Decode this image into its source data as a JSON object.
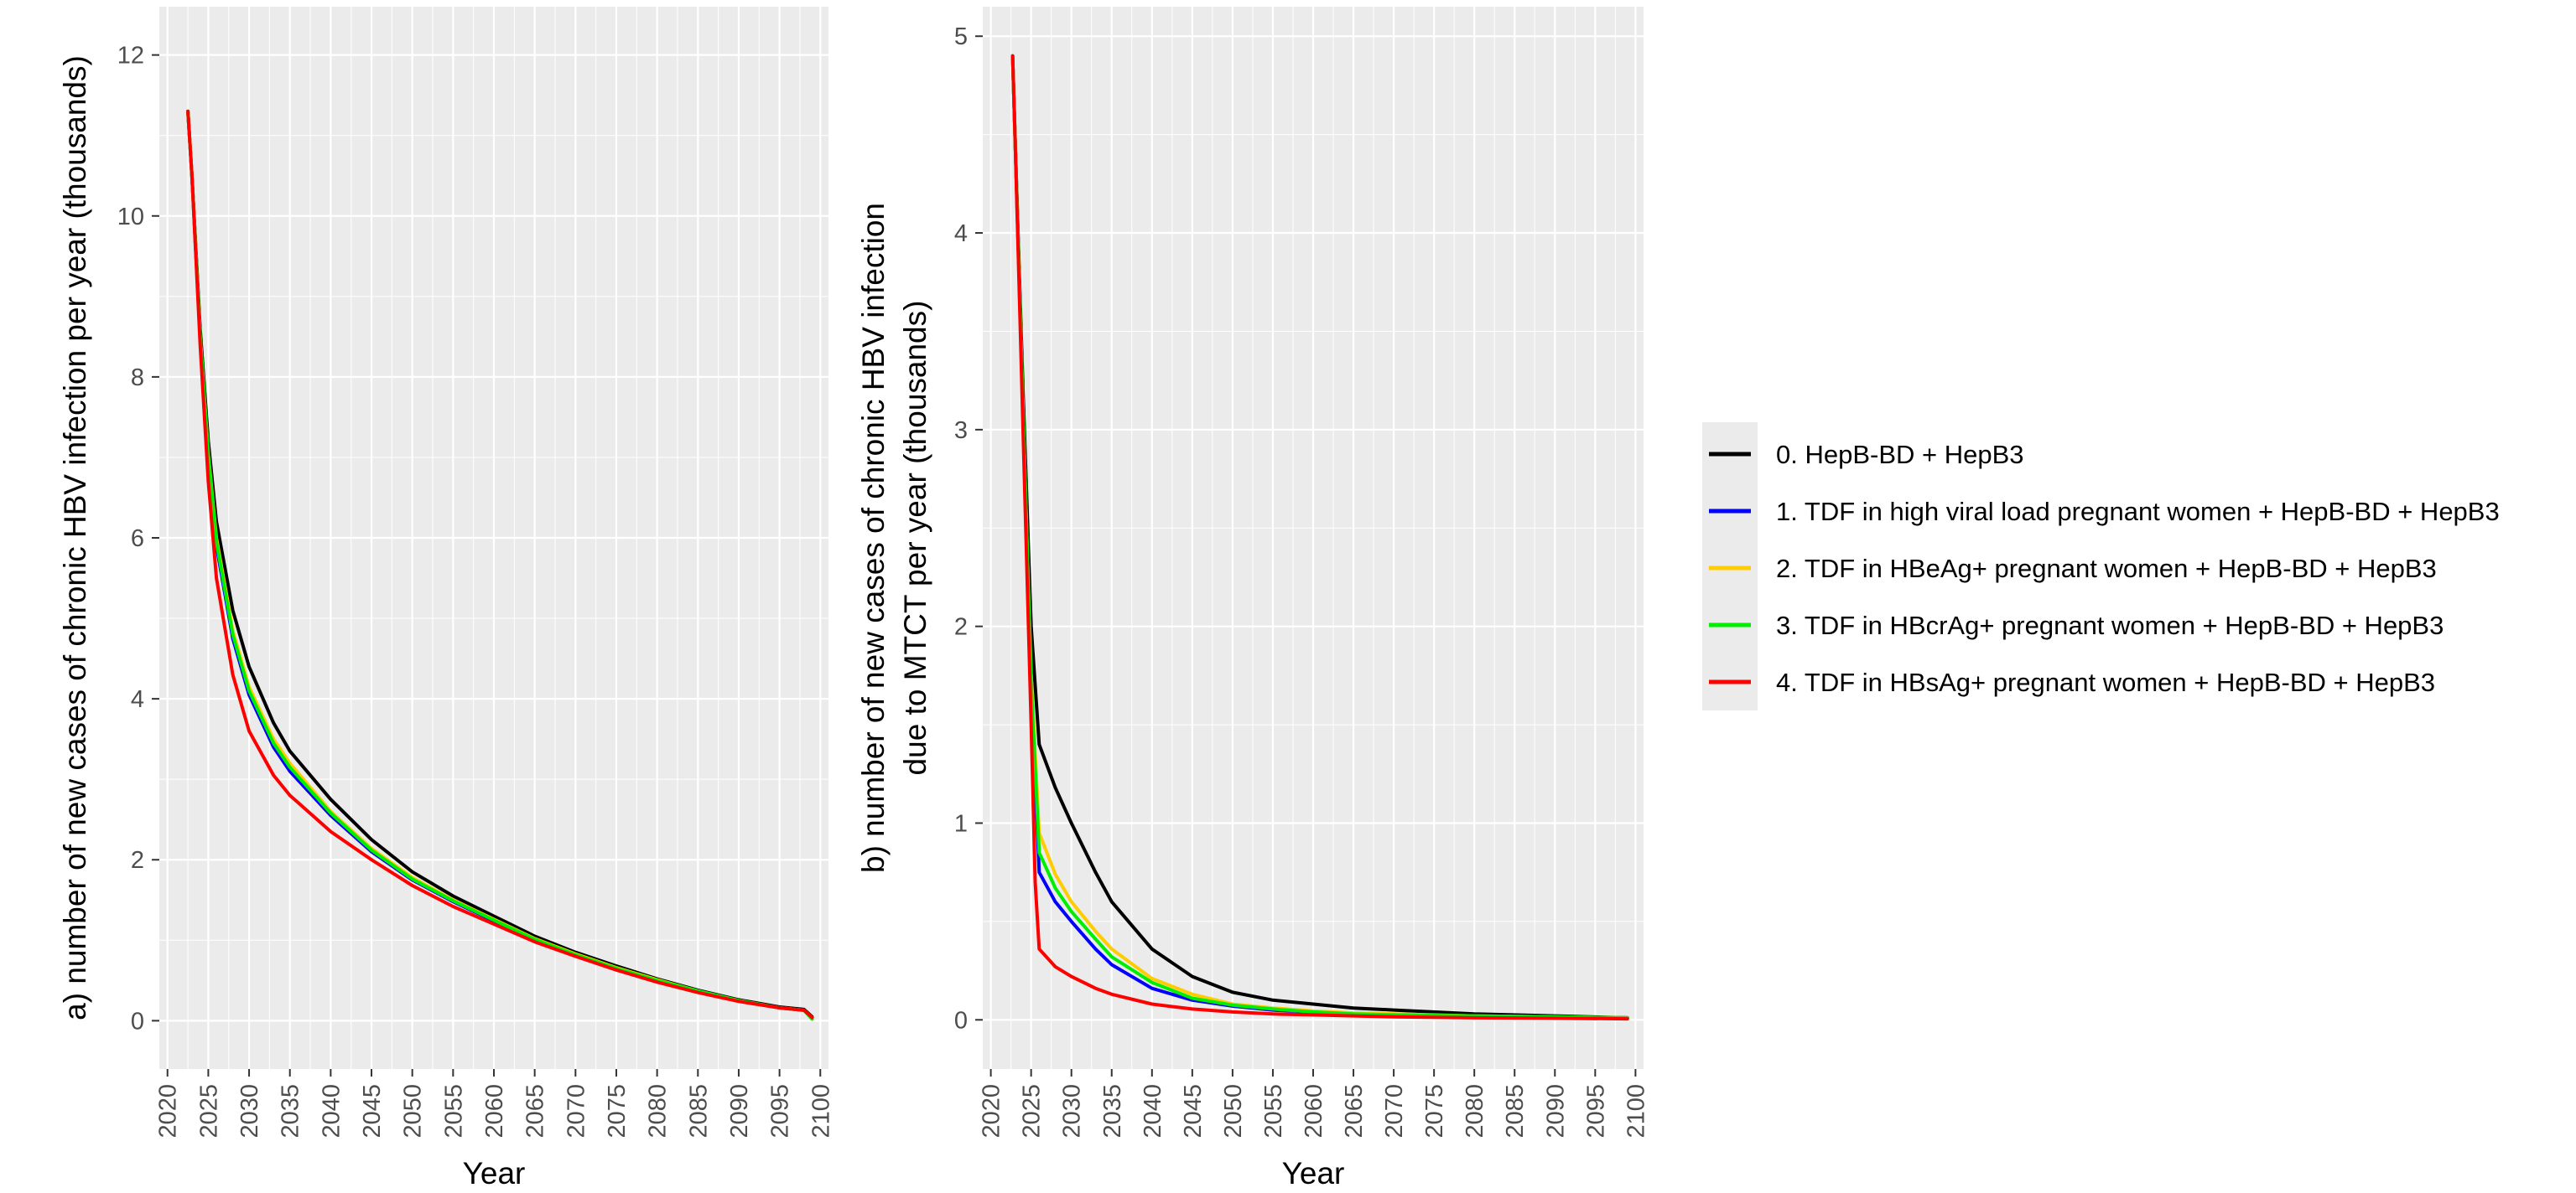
{
  "chart_data": [
    {
      "type": "line",
      "panel": "a",
      "xlabel": "Year",
      "ylabel": "a) number of new cases of chronic HBV infection per year (thousands)",
      "xlim": [
        2019,
        2101
      ],
      "ylim": [
        -0.6,
        12.6
      ],
      "xticks": [
        2020,
        2025,
        2030,
        2035,
        2040,
        2045,
        2050,
        2055,
        2060,
        2065,
        2070,
        2075,
        2080,
        2085,
        2090,
        2095,
        2100
      ],
      "yticks": [
        0,
        2,
        4,
        6,
        8,
        10,
        12
      ],
      "grid": true,
      "series": [
        {
          "name": "0. HepB-BD + HepB3",
          "color": "#000000",
          "x": [
            2022.5,
            2023,
            2024,
            2025,
            2026,
            2028,
            2030,
            2033,
            2035,
            2040,
            2045,
            2050,
            2055,
            2060,
            2065,
            2070,
            2075,
            2080,
            2085,
            2090,
            2095,
            2098,
            2099
          ],
          "y": [
            11.3,
            10.5,
            8.6,
            7.2,
            6.2,
            5.1,
            4.4,
            3.7,
            3.35,
            2.75,
            2.25,
            1.85,
            1.55,
            1.3,
            1.05,
            0.85,
            0.68,
            0.52,
            0.38,
            0.26,
            0.17,
            0.14,
            0.05
          ]
        },
        {
          "name": "1. TDF in high viral load pregnant women + HepB-BD + HepB3",
          "color": "#0000ff",
          "x": [
            2022.5,
            2023,
            2024,
            2025,
            2026,
            2028,
            2030,
            2033,
            2035,
            2040,
            2045,
            2050,
            2055,
            2060,
            2065,
            2070,
            2075,
            2080,
            2085,
            2090,
            2095,
            2098,
            2099
          ],
          "y": [
            11.3,
            10.5,
            8.5,
            7.0,
            5.9,
            4.75,
            4.05,
            3.4,
            3.1,
            2.55,
            2.1,
            1.75,
            1.48,
            1.24,
            1.01,
            0.82,
            0.65,
            0.5,
            0.37,
            0.25,
            0.16,
            0.13,
            0.04
          ]
        },
        {
          "name": "2. TDF in HBeAg+ pregnant women + HepB-BD + HepB3",
          "color": "#ffcc00",
          "x": [
            2022.5,
            2023,
            2024,
            2025,
            2026,
            2028,
            2030,
            2033,
            2035,
            2040,
            2045,
            2050,
            2055,
            2060,
            2065,
            2070,
            2075,
            2080,
            2085,
            2090,
            2095,
            2098,
            2099
          ],
          "y": [
            11.3,
            10.5,
            8.5,
            7.05,
            6.0,
            4.85,
            4.15,
            3.5,
            3.2,
            2.6,
            2.14,
            1.78,
            1.5,
            1.26,
            1.02,
            0.83,
            0.66,
            0.51,
            0.37,
            0.25,
            0.16,
            0.13,
            0.04
          ]
        },
        {
          "name": "3. TDF in HBcrAg+ pregnant women + HepB-BD + HepB3",
          "color": "#00ee00",
          "x": [
            2022.5,
            2023,
            2024,
            2025,
            2026,
            2028,
            2030,
            2033,
            2035,
            2040,
            2045,
            2050,
            2055,
            2060,
            2065,
            2070,
            2075,
            2080,
            2085,
            2090,
            2095,
            2098,
            2099
          ],
          "y": [
            11.3,
            10.5,
            8.5,
            7.02,
            5.95,
            4.8,
            4.1,
            3.45,
            3.15,
            2.58,
            2.12,
            1.76,
            1.49,
            1.25,
            1.01,
            0.82,
            0.65,
            0.5,
            0.37,
            0.25,
            0.16,
            0.13,
            0.02
          ]
        },
        {
          "name": "4. TDF in HBsAg+ pregnant women + HepB-BD + HepB3",
          "color": "#ff0000",
          "x": [
            2022.5,
            2023,
            2024,
            2025,
            2026,
            2028,
            2030,
            2033,
            2035,
            2040,
            2045,
            2050,
            2055,
            2060,
            2065,
            2070,
            2075,
            2080,
            2085,
            2090,
            2095,
            2098,
            2099
          ],
          "y": [
            11.3,
            10.5,
            8.4,
            6.7,
            5.5,
            4.3,
            3.6,
            3.05,
            2.8,
            2.35,
            2.0,
            1.68,
            1.42,
            1.2,
            0.98,
            0.8,
            0.63,
            0.48,
            0.35,
            0.24,
            0.16,
            0.13,
            0.04
          ]
        }
      ]
    },
    {
      "type": "line",
      "panel": "b",
      "xlabel": "Year",
      "ylabel_lines": [
        "b) number of new cases of chronic HBV infection",
        "due to MTCT per year (thousands)"
      ],
      "xlim": [
        2019,
        2101
      ],
      "ylim": [
        -0.25,
        5.15
      ],
      "xticks": [
        2020,
        2025,
        2030,
        2035,
        2040,
        2045,
        2050,
        2055,
        2060,
        2065,
        2070,
        2075,
        2080,
        2085,
        2090,
        2095,
        2100
      ],
      "yticks": [
        0,
        1,
        2,
        3,
        4,
        5
      ],
      "grid": true,
      "series": [
        {
          "name": "0. HepB-BD + HepB3",
          "color": "#000000",
          "x": [
            2022.7,
            2023,
            2024,
            2025,
            2026,
            2028,
            2030,
            2033,
            2035,
            2040,
            2045,
            2050,
            2055,
            2060,
            2065,
            2070,
            2080,
            2090,
            2099
          ],
          "y": [
            4.9,
            4.5,
            3.2,
            2.0,
            1.4,
            1.18,
            1.0,
            0.75,
            0.6,
            0.36,
            0.22,
            0.14,
            0.1,
            0.08,
            0.06,
            0.05,
            0.03,
            0.02,
            0.01
          ]
        },
        {
          "name": "1. TDF in high viral load pregnant women + HepB-BD + HepB3",
          "color": "#0000ff",
          "x": [
            2022.7,
            2023,
            2024,
            2025,
            2026,
            2028,
            2030,
            2033,
            2035,
            2040,
            2045,
            2050,
            2055,
            2060,
            2065,
            2070,
            2080,
            2090,
            2099
          ],
          "y": [
            4.9,
            4.5,
            3.1,
            1.7,
            0.75,
            0.6,
            0.5,
            0.36,
            0.28,
            0.16,
            0.1,
            0.07,
            0.05,
            0.04,
            0.03,
            0.025,
            0.02,
            0.015,
            0.01
          ]
        },
        {
          "name": "2. TDF in HBeAg+ pregnant women + HepB-BD + HepB3",
          "color": "#ffcc00",
          "x": [
            2022.7,
            2023,
            2024,
            2025,
            2026,
            2028,
            2030,
            2033,
            2035,
            2040,
            2045,
            2050,
            2055,
            2060,
            2065,
            2070,
            2080,
            2090,
            2099
          ],
          "y": [
            4.9,
            4.5,
            3.1,
            1.75,
            0.95,
            0.74,
            0.6,
            0.45,
            0.36,
            0.21,
            0.13,
            0.08,
            0.06,
            0.045,
            0.035,
            0.03,
            0.02,
            0.015,
            0.01
          ]
        },
        {
          "name": "3. TDF in HBcrAg+ pregnant women + HepB-BD + HepB3",
          "color": "#00ee00",
          "x": [
            2022.7,
            2023,
            2024,
            2025,
            2026,
            2028,
            2030,
            2033,
            2035,
            2040,
            2045,
            2050,
            2055,
            2060,
            2065,
            2070,
            2080,
            2090,
            2099
          ],
          "y": [
            4.9,
            4.5,
            3.1,
            1.72,
            0.85,
            0.67,
            0.55,
            0.41,
            0.32,
            0.19,
            0.11,
            0.075,
            0.055,
            0.04,
            0.03,
            0.025,
            0.02,
            0.015,
            0.01
          ]
        },
        {
          "name": "4. TDF in HBsAg+ pregnant women + HepB-BD + HepB3",
          "color": "#ff0000",
          "x": [
            2022.7,
            2023,
            2024,
            2025,
            2025.5,
            2026,
            2028,
            2030,
            2033,
            2035,
            2040,
            2045,
            2050,
            2055,
            2060,
            2065,
            2070,
            2080,
            2090,
            2099
          ],
          "y": [
            4.9,
            4.5,
            3.0,
            1.5,
            0.7,
            0.36,
            0.27,
            0.22,
            0.16,
            0.13,
            0.08,
            0.055,
            0.04,
            0.03,
            0.025,
            0.02,
            0.015,
            0.01,
            0.008,
            0.005
          ]
        }
      ]
    }
  ],
  "legend": {
    "placement": "right",
    "entries": [
      {
        "label": "0. HepB-BD + HepB3",
        "color": "#000000"
      },
      {
        "label": "1. TDF in high viral load pregnant women + HepB-BD + HepB3",
        "color": "#0000ff"
      },
      {
        "label": "2. TDF in HBeAg+ pregnant women + HepB-BD + HepB3",
        "color": "#ffcc00"
      },
      {
        "label": "3. TDF in HBcrAg+ pregnant women + HepB-BD + HepB3",
        "color": "#00ee00"
      },
      {
        "label": "4. TDF in HBsAg+ pregnant women + HepB-BD + HepB3",
        "color": "#ff0000"
      }
    ]
  },
  "colors": {
    "panel_background": "#ebebeb",
    "grid": "#ffffff",
    "tick": "#333333"
  }
}
